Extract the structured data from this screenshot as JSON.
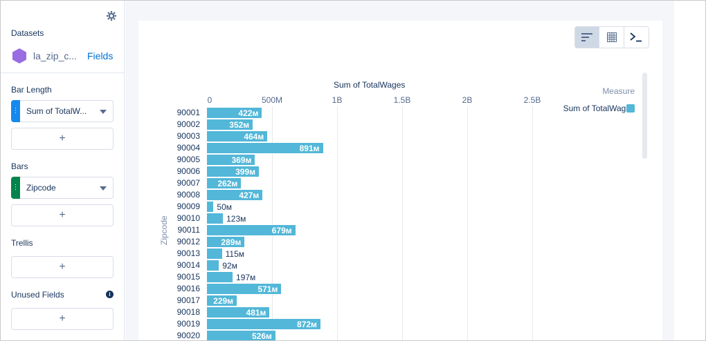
{
  "left_panel": {
    "datasets_title": "Datasets",
    "dataset_name": "la_zip_c...",
    "dataset_fields_link": "Fields",
    "bar_length_title": "Bar Length",
    "bar_length_field": "Sum of TotalW...",
    "bars_title": "Bars",
    "bars_field": "Zipcode",
    "trellis_title": "Trellis",
    "unused_fields_title": "Unused Fields",
    "add_label": "+",
    "measure_color": "#1589ee",
    "dimension_color": "#04844b"
  },
  "toolbar": {
    "view_buttons": [
      "chart-view",
      "table-view",
      "query-view"
    ],
    "active": "chart-view"
  },
  "chart_data": {
    "type": "bar",
    "orientation": "horizontal",
    "x_axis_title": "Sum of TotalWages",
    "y_axis_title": "Zipcode",
    "x_ticks": [
      "0",
      "500M",
      "1B",
      "1.5B",
      "2B",
      "2.5B"
    ],
    "xlim": [
      0,
      2500000000
    ],
    "grid": true,
    "legend_title": "Measure",
    "legend_position": "top-right",
    "series": [
      {
        "name": "Sum of TotalWages",
        "color": "#52b7d8",
        "categories": [
          "90001",
          "90002",
          "90003",
          "90004",
          "90005",
          "90006",
          "90007",
          "90008",
          "90009",
          "90010",
          "90011",
          "90012",
          "90013",
          "90014",
          "90015",
          "90016",
          "90017",
          "90018",
          "90019",
          "90020"
        ],
        "values": [
          422000000,
          352000000,
          464000000,
          891000000,
          369000000,
          399000000,
          262000000,
          427000000,
          50000000,
          123000000,
          679000000,
          289000000,
          115000000,
          92000000,
          197000000,
          571000000,
          229000000,
          481000000,
          872000000,
          526000000
        ],
        "labels": [
          "422м",
          "352м",
          "464м",
          "891м",
          "369м",
          "399м",
          "262м",
          "427м",
          "50м",
          "123м",
          "679м",
          "289м",
          "115м",
          "92м",
          "197м",
          "571м",
          "229м",
          "481м",
          "872м",
          "526м"
        ]
      }
    ]
  }
}
